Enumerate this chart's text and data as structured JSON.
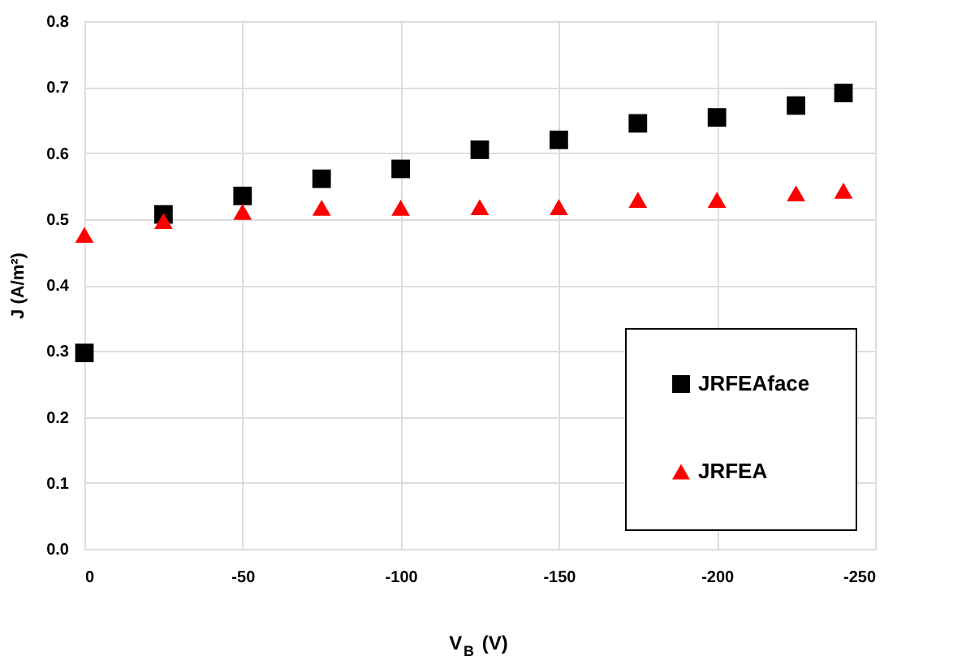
{
  "chart_data": {
    "type": "scatter",
    "xlabel": "V$_{B}$ (V)",
    "ylabel": "J (A/m²)",
    "x": [
      0,
      -25,
      -50,
      -75,
      -100,
      -125,
      -150,
      -175,
      -200,
      -225,
      -240
    ],
    "series": [
      {
        "name": "JRFEAface",
        "color": "#000000",
        "marker": "square",
        "values": [
          0.297,
          0.507,
          0.535,
          0.561,
          0.576,
          0.605,
          0.62,
          0.645,
          0.654,
          0.672,
          0.691
        ]
      },
      {
        "name": "JRFEA",
        "color": "#ff0000",
        "marker": "triangle",
        "values": [
          0.476,
          0.497,
          0.511,
          0.517,
          0.517,
          0.518,
          0.518,
          0.529,
          0.529,
          0.539,
          0.543
        ]
      }
    ],
    "xlim": [
      0,
      -250
    ],
    "xticks": [
      0,
      -50,
      -100,
      -150,
      -200,
      -250
    ],
    "ylim": [
      0,
      0.8
    ],
    "yticks": [
      {
        "value": 0,
        "label": "0.0"
      },
      0.1,
      0.2,
      0.3,
      0.4,
      0.5,
      0.6,
      0.7,
      0.8
    ],
    "grid": true,
    "legend": "bottom right"
  }
}
